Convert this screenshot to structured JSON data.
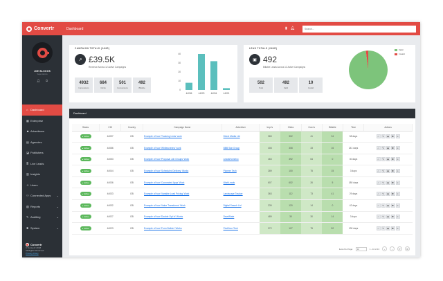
{
  "brand": {
    "name": "Convertr"
  },
  "user": {
    "name": "JOE BLOGGS",
    "role": "Super Admin"
  },
  "sidebar": {
    "items": [
      {
        "label": "Dashboard",
        "icon": "home-icon",
        "glyph": "⌂",
        "active": true
      },
      {
        "label": "Enterprise",
        "icon": "building-icon",
        "glyph": "▦"
      },
      {
        "label": "Advertisers",
        "icon": "users-icon",
        "glyph": "☻"
      },
      {
        "label": "Agencies",
        "icon": "briefcase-icon",
        "glyph": "▤"
      },
      {
        "label": "Publishers",
        "icon": "megaphone-icon",
        "glyph": "◪"
      },
      {
        "label": "Live Leads",
        "icon": "list-icon",
        "glyph": "≣"
      },
      {
        "label": "Insights",
        "icon": "chart-icon",
        "glyph": "▥"
      },
      {
        "label": "Users",
        "icon": "user-icon",
        "glyph": "☺"
      },
      {
        "label": "Connected Apps",
        "icon": "plug-icon",
        "glyph": "⚇",
        "chevron": true
      },
      {
        "label": "Reports",
        "icon": "report-icon",
        "glyph": "▧",
        "chevron": true
      },
      {
        "label": "Auditing",
        "icon": "audit-icon",
        "glyph": "✎",
        "chevron": true
      },
      {
        "label": "System",
        "icon": "gear-icon",
        "glyph": "✱",
        "chevron": true
      }
    ],
    "footer": {
      "brand": "Convertr",
      "copyright": "© Convertr 2018",
      "rights": "All Rights Reserved",
      "link": "Privacy Policy"
    }
  },
  "header": {
    "title": "Dashboard",
    "search_placeholder": "Search..."
  },
  "campaign_totals": {
    "title": "CAMPAIGN TOTALS (24HR)",
    "value": "£39.5K",
    "sub": "Revenue Across 12 Active Campaigns",
    "boxes": [
      {
        "value": "4932",
        "label": "Impressions"
      },
      {
        "value": "684",
        "label": "Clicks"
      },
      {
        "value": "501",
        "label": "Conversions"
      },
      {
        "value": "492",
        "label": "Billable"
      }
    ]
  },
  "lead_totals": {
    "title": "LEAD TOTALS (24HR)",
    "value": "492",
    "sub": "Billable Leads Across 12 Active Campaigns",
    "boxes": [
      {
        "value": "502",
        "label": "Total"
      },
      {
        "value": "492",
        "label": "Valid"
      },
      {
        "value": "10",
        "label": "Invalid"
      }
    ],
    "legend": [
      {
        "label": "Valid",
        "color": "#7dc47b"
      },
      {
        "label": "Invalid",
        "color": "#e24b44"
      }
    ]
  },
  "chart_data": [
    {
      "type": "bar",
      "categories": [
        "44036",
        "44023",
        "44004",
        "44021"
      ],
      "values": [
        8,
        40,
        32,
        2
      ],
      "ylim": [
        0,
        40
      ],
      "yticks": [
        "40",
        "30",
        "20",
        "10",
        "0"
      ],
      "color": "#5bbfbd"
    },
    {
      "type": "pie",
      "categories": [
        "Valid",
        "Invalid"
      ],
      "values": [
        492,
        10
      ],
      "colors": [
        "#7dc47b",
        "#e24b44"
      ]
    }
  ],
  "table": {
    "panel_title": "Dashboard",
    "columns": [
      "Status",
      "CID",
      "Country",
      "Campaign Name",
      "Advertiser",
      "Impr's",
      "Clicks",
      "Conv's",
      "Billable",
      "Time",
      "Actions"
    ],
    "rows": [
      [
        "Active",
        "44097",
        "GB",
        "Example of how 'Tracking Links' work",
        "Direct Media Ltd",
        "365",
        "302",
        "41",
        "34",
        "58 days"
      ],
      [
        "Active",
        "44086",
        "GB",
        "Example of how 'Whitescreens' work",
        "BBB Star Group",
        "408",
        "308",
        "33",
        "16",
        "241 days"
      ],
      [
        "Active",
        "44053",
        "GB",
        "Example of how 'Proposal Job Groups' Work",
        "LeadsHomeInc",
        "463",
        "392",
        "64",
        "0",
        "30 days"
      ],
      [
        "Active",
        "44044",
        "GB",
        "Example of how 'Scheduled Delivery' Works",
        "Pioneer Tech",
        "289",
        "100",
        "75",
        "15",
        "3 days"
      ],
      [
        "Active",
        "44036",
        "GB",
        "Example of how 'Connected Apps' Work",
        "WorkLeads",
        "607",
        "602",
        "26",
        "5",
        "180 days"
      ],
      [
        "Active",
        "44033",
        "GB",
        "Example of how 'Variable Lead Pricing' Work",
        "Landscape Tracker",
        "363",
        "112",
        "73",
        "41",
        "29 days"
      ],
      [
        "Active",
        "44032",
        "GB",
        "Example of how 'Value Transforms' Work",
        "Digital Search Ltd",
        "239",
        "120",
        "14",
        "0",
        "42 days"
      ],
      [
        "Active",
        "44027",
        "GB",
        "Example of how 'Double Opt In' Works",
        "DevelMate",
        "489",
        "30",
        "30",
        "14",
        "3 days"
      ],
      [
        "Active",
        "44023",
        "GB",
        "Example of how 'Form Builder' Works",
        "FirstHour Tech",
        "372",
        "127",
        "75",
        "52",
        "130 days"
      ]
    ],
    "pager": {
      "items_per_page_label": "Items Per Page:",
      "items_per_page": "10",
      "range": "1 - 10 of 13"
    }
  }
}
